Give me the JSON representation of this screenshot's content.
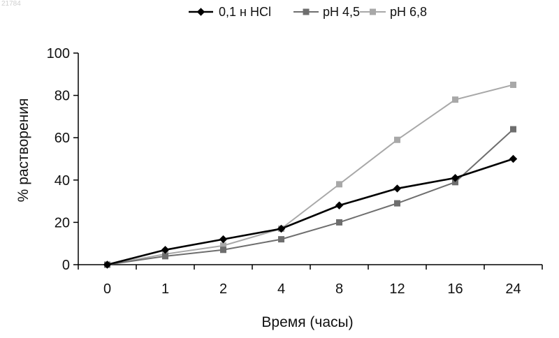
{
  "corner_id": "21784",
  "chart_data": {
    "type": "line",
    "title": "",
    "xlabel": "Время (часы)",
    "ylabel": "% растворения",
    "categories": [
      "0",
      "1",
      "2",
      "4",
      "8",
      "12",
      "16",
      "24"
    ],
    "ylim": [
      0,
      100
    ],
    "yticks": [
      0,
      20,
      40,
      60,
      80,
      100
    ],
    "grid": false,
    "legend_position": "top",
    "series": [
      {
        "name": "0,1 н HCl",
        "values": [
          0,
          7,
          12,
          17,
          28,
          36,
          41,
          50
        ],
        "color": "#000000",
        "marker": "diamond"
      },
      {
        "name": "pH 4,5",
        "values": [
          0,
          4,
          7,
          12,
          20,
          29,
          39,
          64
        ],
        "color": "#6e6e6e",
        "marker": "square"
      },
      {
        "name": "pH 6,8",
        "values": [
          0,
          5,
          9,
          17,
          38,
          59,
          78,
          85
        ],
        "color": "#a8a8a8",
        "marker": "square"
      }
    ]
  }
}
